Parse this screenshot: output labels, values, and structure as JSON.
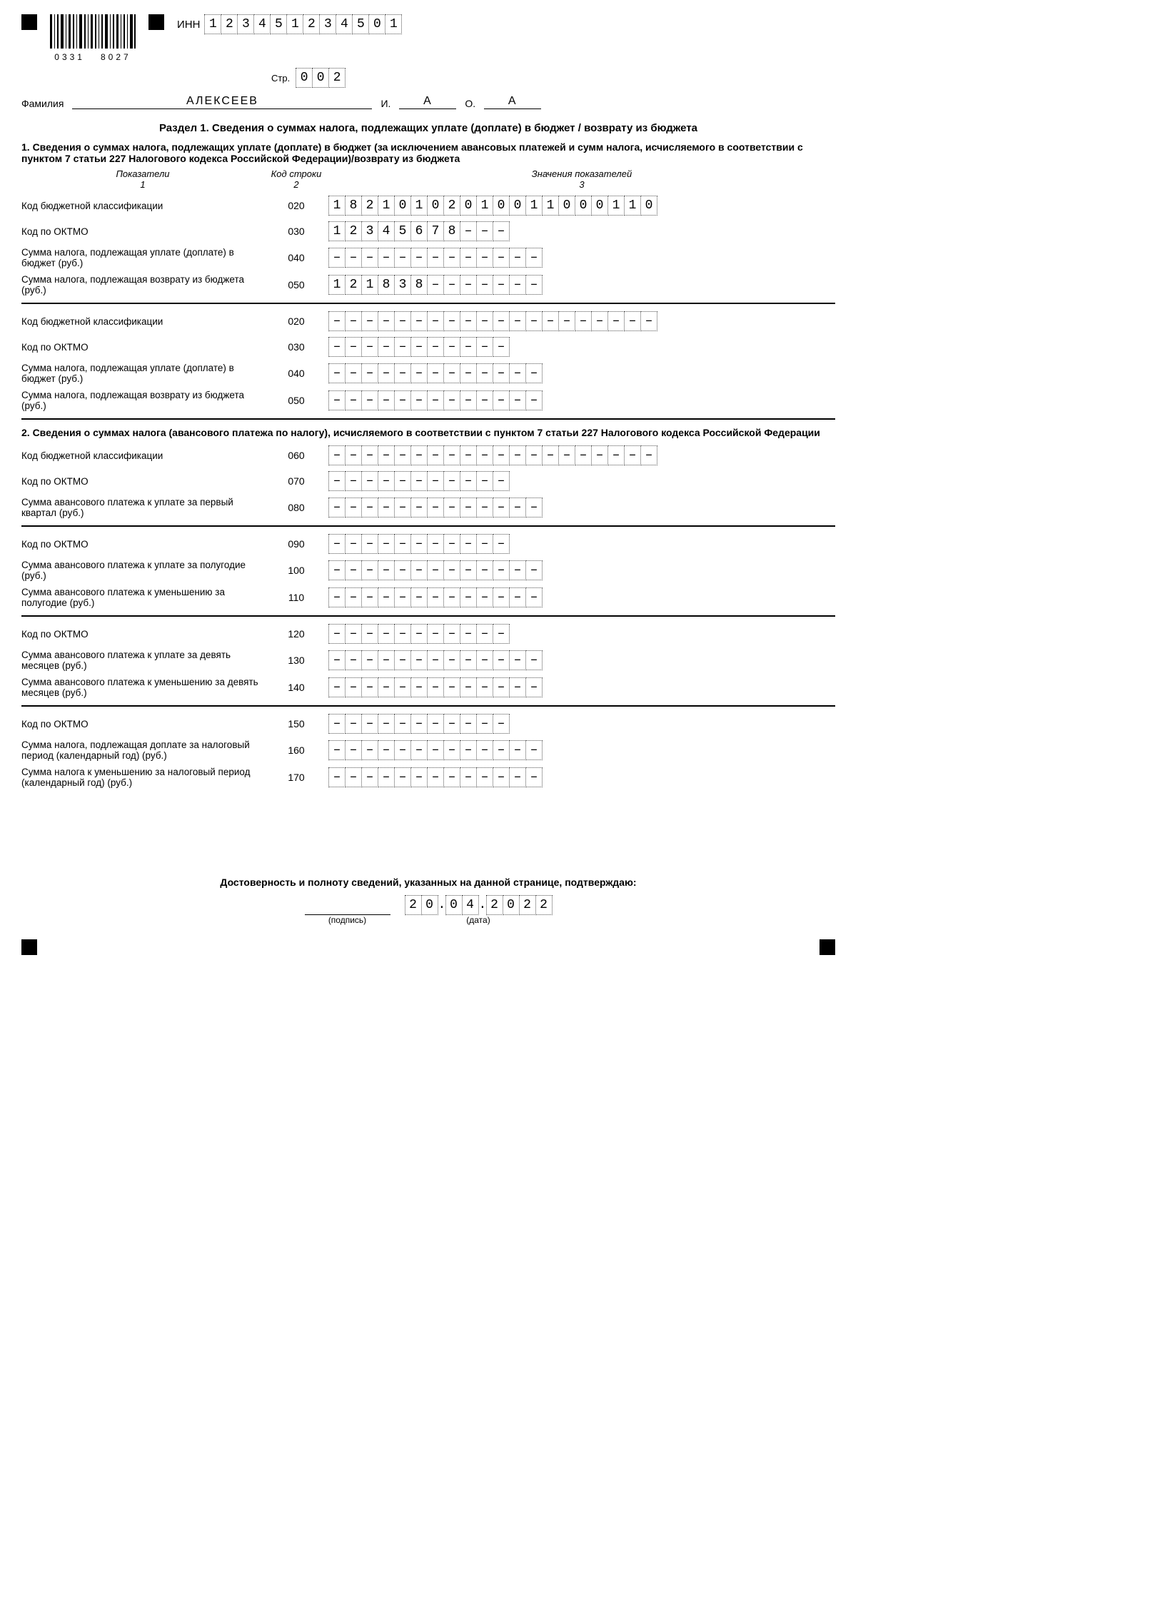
{
  "header": {
    "barcode_left": "0331",
    "barcode_right": "8027",
    "inn_label": "ИНН",
    "inn": "123451234501",
    "page_label": "Стр.",
    "page": "002",
    "famil_label": "Фамилия",
    "surname": "АЛЕКСЕЕВ",
    "i_label": "И.",
    "i_val": "А",
    "o_label": "О.",
    "o_val": "А"
  },
  "section1": {
    "title": "Раздел 1. Сведения о суммах налога, подлежащих уплате (доплате) в бюджет / возврату из бюджета",
    "sub": "1. Сведения о суммах налога, подлежащих уплате (доплате) в бюджет (за исключением авансовых платежей и сумм налога, исчисляемого в соответствии с пунктом 7 статьи 227 Налогового кодекса Российской Федерации)/возврату из бюджета",
    "heads": {
      "c1": "Показатели",
      "n1": "1",
      "c2": "Код строки",
      "n2": "2",
      "c3": "Значения показателей",
      "n3": "3"
    },
    "blockA": [
      {
        "label": "Код бюджетной классификации",
        "code": "020",
        "len": 20,
        "value": "18210102010011000110"
      },
      {
        "label": "Код по ОКТМО",
        "code": "030",
        "len": 11,
        "value": "12345678---"
      },
      {
        "label": "Сумма налога, подлежащая уплате (доплате) в бюджет (руб.)",
        "code": "040",
        "len": 13,
        "value": "-------------"
      },
      {
        "label": "Сумма налога, подлежащая возврату из бюджета (руб.)",
        "code": "050",
        "len": 13,
        "value": "121838-------"
      }
    ],
    "blockB": [
      {
        "label": "Код бюджетной классификации",
        "code": "020",
        "len": 20,
        "value": "--------------------"
      },
      {
        "label": "Код по ОКТМО",
        "code": "030",
        "len": 11,
        "value": "-----------"
      },
      {
        "label": "Сумма налога, подлежащая уплате (доплате) в бюджет (руб.)",
        "code": "040",
        "len": 13,
        "value": "-------------"
      },
      {
        "label": "Сумма налога, подлежащая возврату из бюджета (руб.)",
        "code": "050",
        "len": 13,
        "value": "-------------"
      }
    ]
  },
  "section2": {
    "sub": "2. Сведения о суммах налога (авансового платежа по налогу), исчисляемого в соответствии с пунктом 7 статьи 227 Налогового кодекса Российской Федерации",
    "groups": [
      [
        {
          "label": "Код бюджетной классификации",
          "code": "060",
          "len": 20,
          "value": "--------------------"
        },
        {
          "label": "Код по ОКТМО",
          "code": "070",
          "len": 11,
          "value": "-----------"
        },
        {
          "label": "Сумма авансового платежа к уплате за первый квартал (руб.)",
          "code": "080",
          "len": 13,
          "value": "-------------"
        }
      ],
      [
        {
          "label": "Код по ОКТМО",
          "code": "090",
          "len": 11,
          "value": "-----------"
        },
        {
          "label": "Сумма авансового платежа к уплате за полугодие (руб.)",
          "code": "100",
          "len": 13,
          "value": "-------------"
        },
        {
          "label": "Сумма авансового платежа к уменьшению за полугодие (руб.)",
          "code": "110",
          "len": 13,
          "value": "-------------"
        }
      ],
      [
        {
          "label": "Код по ОКТМО",
          "code": "120",
          "len": 11,
          "value": "-----------"
        },
        {
          "label": "Сумма авансового платежа к уплате за девять месяцев (руб.)",
          "code": "130",
          "len": 13,
          "value": "-------------"
        },
        {
          "label": "Сумма авансового платежа к уменьшению за девять месяцев (руб.)",
          "code": "140",
          "len": 13,
          "value": "-------------"
        }
      ],
      [
        {
          "label": "Код по ОКТМО",
          "code": "150",
          "len": 11,
          "value": "-----------"
        },
        {
          "label": "Сумма налога, подлежащая доплате за налоговый период (календарный год) (руб.)",
          "code": "160",
          "len": 13,
          "value": "-------------"
        },
        {
          "label": "Сумма налога к уменьшению за налоговый период (календарный год) (руб.)",
          "code": "170",
          "len": 13,
          "value": "-------------"
        }
      ]
    ]
  },
  "footer": {
    "confirm": "Достоверность и полноту сведений, указанных на данной странице, подтверждаю:",
    "sig_label": "(подпись)",
    "date_label": "(дата)",
    "date": {
      "d": "20",
      "m": "04",
      "y": "2022"
    }
  }
}
